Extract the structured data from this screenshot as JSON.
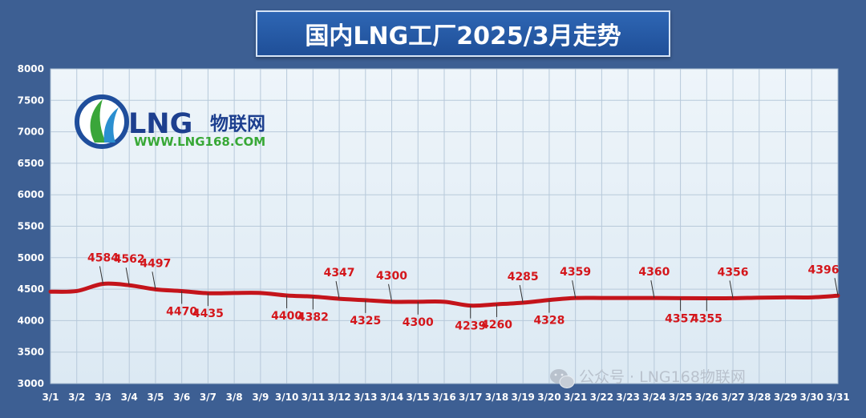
{
  "title": "国内LNG工厂2025/3月走势",
  "logo": {
    "brand": "LNG",
    "cn": "物联网",
    "url": "WWW.LNG168.COM"
  },
  "watermark": "公众号 · LNG168物联网",
  "colors": {
    "background": "#3d5f93",
    "plot": "#e6f0f7",
    "line": "#c4141b",
    "label": "#d4161b"
  },
  "chart_data": {
    "type": "line",
    "title": "国内LNG工厂2025/3月走势",
    "categories": [
      "3/1",
      "3/2",
      "3/3",
      "3/4",
      "3/5",
      "3/6",
      "3/7",
      "3/8",
      "3/9",
      "3/10",
      "3/11",
      "3/12",
      "3/13",
      "3/14",
      "3/15",
      "3/16",
      "3/17",
      "3/18",
      "3/19",
      "3/20",
      "3/21",
      "3/22",
      "3/23",
      "3/24",
      "3/25",
      "3/26",
      "3/27",
      "3/28",
      "3/29",
      "3/30",
      "3/31"
    ],
    "series": [
      {
        "values": [
          4460,
          4470,
          4584,
          4562,
          4497,
          4470,
          4435,
          4440,
          4440,
          4400,
          4382,
          4347,
          4325,
          4300,
          4300,
          4300,
          4239,
          4260,
          4285,
          4328,
          4359,
          4360,
          4360,
          4360,
          4357,
          4355,
          4356,
          4365,
          4370,
          4370,
          4396
        ]
      }
    ],
    "labels": [
      {
        "i": 2,
        "text": "4584",
        "pos": "above"
      },
      {
        "i": 3,
        "text": "4562",
        "pos": "above"
      },
      {
        "i": 4,
        "text": "4497",
        "pos": "above"
      },
      {
        "i": 5,
        "text": "4470",
        "pos": "below"
      },
      {
        "i": 6,
        "text": "4435",
        "pos": "below"
      },
      {
        "i": 9,
        "text": "4400",
        "pos": "below"
      },
      {
        "i": 10,
        "text": "4382",
        "pos": "below"
      },
      {
        "i": 11,
        "text": "4347",
        "pos": "above"
      },
      {
        "i": 12,
        "text": "4325",
        "pos": "below"
      },
      {
        "i": 13,
        "text": "4300",
        "pos": "above"
      },
      {
        "i": 14,
        "text": "4300",
        "pos": "below"
      },
      {
        "i": 16,
        "text": "4239",
        "pos": "below"
      },
      {
        "i": 17,
        "text": "4260",
        "pos": "below"
      },
      {
        "i": 18,
        "text": "4285",
        "pos": "above"
      },
      {
        "i": 19,
        "text": "4328",
        "pos": "below"
      },
      {
        "i": 20,
        "text": "4359",
        "pos": "above"
      },
      {
        "i": 23,
        "text": "4360",
        "pos": "above"
      },
      {
        "i": 24,
        "text": "4357",
        "pos": "below"
      },
      {
        "i": 25,
        "text": "4355",
        "pos": "below"
      },
      {
        "i": 26,
        "text": "4356",
        "pos": "above"
      },
      {
        "i": 30,
        "text": "4396",
        "pos": "above"
      }
    ],
    "ylim": [
      3000,
      8000
    ],
    "yticks": [
      3000,
      3500,
      4000,
      4500,
      5000,
      5500,
      6000,
      6500,
      7000,
      7500,
      8000
    ],
    "grid": true,
    "legend": "none"
  }
}
